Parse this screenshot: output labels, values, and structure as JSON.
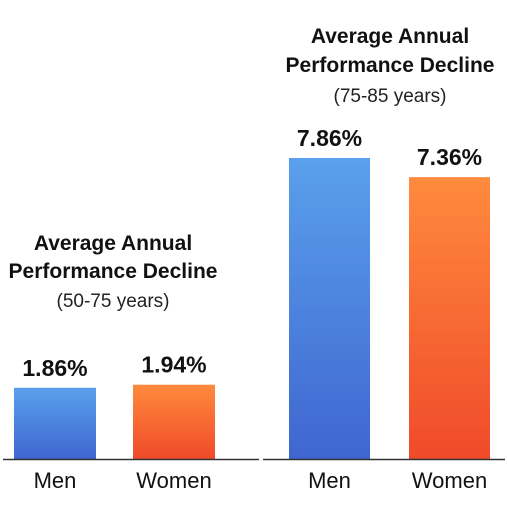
{
  "chart_data": [
    {
      "type": "bar",
      "title": [
        "Average Annual",
        "Performance Decline"
      ],
      "subtitle": "(50-75 years)",
      "categories": [
        "Men",
        "Women"
      ],
      "values": [
        1.86,
        1.94
      ],
      "value_labels": [
        "1.86%",
        "1.94%"
      ],
      "ylim": [
        0,
        8.5
      ],
      "grid": false,
      "legend": "none",
      "colors": [
        [
          "#5aa0ec",
          "#3f66d0"
        ],
        [
          "#ff8a3d",
          "#f04a2a"
        ]
      ]
    },
    {
      "type": "bar",
      "title": [
        "Average Annual",
        "Performance Decline"
      ],
      "subtitle": "(75-85 years)",
      "categories": [
        "Men",
        "Women"
      ],
      "values": [
        7.86,
        7.36
      ],
      "value_labels": [
        "7.86%",
        "7.36%"
      ],
      "ylim": [
        0,
        8.5
      ],
      "grid": false,
      "legend": "none",
      "colors": [
        [
          "#5aa0ec",
          "#3f66d0"
        ],
        [
          "#ff8a3d",
          "#f04a2a"
        ]
      ]
    }
  ]
}
